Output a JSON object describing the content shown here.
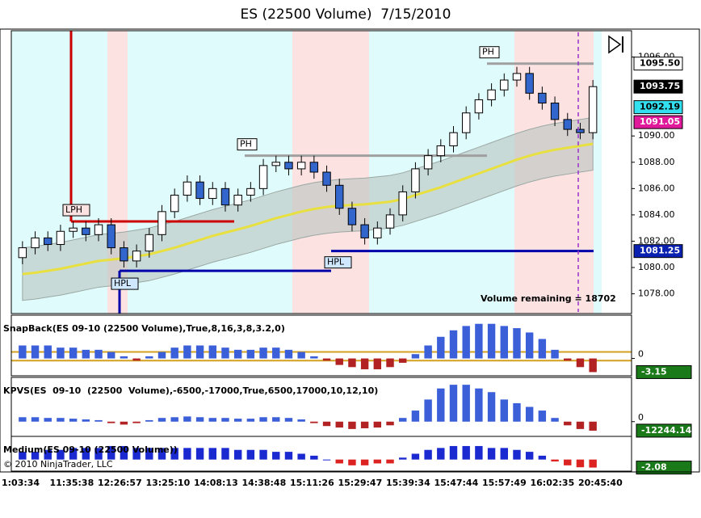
{
  "chart_data": {
    "type": "candlestick",
    "title": "ES (22500 Volume)  7/15/2010",
    "time_labels": [
      "1:03:34",
      "11:35:38",
      "12:26:57",
      "13:25:10",
      "14:08:13",
      "14:38:48",
      "15:11:26",
      "15:29:47",
      "15:39:34",
      "15:47:44",
      "15:57:49",
      "16:02:35",
      "20:45:40"
    ],
    "open": [
      1080.75,
      1081.5,
      1082.25,
      1081.75,
      1082.75,
      1083,
      1082.5,
      1083.25,
      1081.5,
      1080.5,
      1081.25,
      1082.5,
      1084.25,
      1085.5,
      1086.5,
      1085.25,
      1086,
      1084.75,
      1085.5,
      1086,
      1087.75,
      1088,
      1087.5,
      1088,
      1087.25,
      1086.25,
      1084.5,
      1083.25,
      1082.25,
      1083,
      1084,
      1085.75,
      1087.5,
      1088.5,
      1089.25,
      1090.25,
      1091.75,
      1092.75,
      1093.5,
      1094.25,
      1094.75,
      1093.25,
      1092.5,
      1091.25,
      1090.5,
      1090.25
    ],
    "high": [
      1082,
      1082.75,
      1082.75,
      1083.25,
      1083.5,
      1083.5,
      1083.75,
      1083.75,
      1082,
      1081.75,
      1083,
      1084.75,
      1086,
      1087,
      1087,
      1086.5,
      1086.5,
      1086,
      1086.5,
      1088.25,
      1088.5,
      1088.5,
      1088.5,
      1088.5,
      1087.75,
      1086.75,
      1085,
      1083.75,
      1083.5,
      1084.5,
      1086.25,
      1088,
      1089,
      1089.75,
      1090.75,
      1092.25,
      1093.25,
      1094,
      1094.75,
      1095.25,
      1095.25,
      1093.75,
      1093,
      1091.75,
      1091,
      1094.25
    ],
    "low": [
      1080.25,
      1081,
      1081.25,
      1081.25,
      1082.25,
      1082,
      1082,
      1081,
      1080,
      1080,
      1080.75,
      1082,
      1083.75,
      1085,
      1084.75,
      1084.75,
      1084.25,
      1084.25,
      1085,
      1085.5,
      1087.25,
      1087,
      1087,
      1086.75,
      1085.75,
      1084,
      1082.75,
      1081.75,
      1081.75,
      1082.5,
      1083.5,
      1085.25,
      1087,
      1088,
      1088.75,
      1089.75,
      1091.25,
      1092.25,
      1093,
      1093.75,
      1092.75,
      1092,
      1090.75,
      1090,
      1089.75,
      1089.75
    ],
    "close": [
      1081.5,
      1082.25,
      1081.75,
      1082.75,
      1083,
      1082.5,
      1083.25,
      1081.5,
      1080.5,
      1081.25,
      1082.5,
      1084.25,
      1085.5,
      1086.5,
      1085.25,
      1086,
      1084.75,
      1085.5,
      1086,
      1087.75,
      1088,
      1087.5,
      1088,
      1087.25,
      1086.25,
      1084.5,
      1083.25,
      1082.25,
      1083,
      1084,
      1085.75,
      1087.5,
      1088.5,
      1089.25,
      1090.25,
      1091.75,
      1092.75,
      1093.5,
      1094.25,
      1094.75,
      1093.25,
      1092.5,
      1091.25,
      1090.5,
      1090.25,
      1093.75
    ],
    "up_color": "#ffffff",
    "down_color": "#3366cc",
    "moving_average": {
      "color": "#e8e040",
      "values": [
        1079.5,
        1079.6,
        1079.75,
        1079.9,
        1080.1,
        1080.3,
        1080.5,
        1080.6,
        1080.7,
        1080.85,
        1081,
        1081.25,
        1081.5,
        1081.8,
        1082.1,
        1082.4,
        1082.65,
        1082.9,
        1083.15,
        1083.45,
        1083.75,
        1084,
        1084.25,
        1084.45,
        1084.6,
        1084.7,
        1084.75,
        1084.8,
        1084.9,
        1085,
        1085.2,
        1085.5,
        1085.8,
        1086.1,
        1086.45,
        1086.8,
        1087.15,
        1087.5,
        1087.85,
        1088.2,
        1088.5,
        1088.75,
        1088.95,
        1089.1,
        1089.25,
        1089.4
      ]
    },
    "band": {
      "color": "#b8c4c0",
      "upper": [
        1081.5,
        1081.6,
        1081.75,
        1081.9,
        1082.1,
        1082.3,
        1082.5,
        1082.6,
        1082.7,
        1082.85,
        1083,
        1083.25,
        1083.5,
        1083.8,
        1084.1,
        1084.4,
        1084.65,
        1084.9,
        1085.15,
        1085.45,
        1085.75,
        1086,
        1086.25,
        1086.45,
        1086.6,
        1086.7,
        1086.75,
        1086.8,
        1086.9,
        1087,
        1087.2,
        1087.5,
        1087.8,
        1088.1,
        1088.45,
        1088.8,
        1089.15,
        1089.5,
        1089.85,
        1090.2,
        1090.5,
        1090.75,
        1090.95,
        1091.1,
        1091.25,
        1091.4
      ],
      "lower": [
        1077.5,
        1077.6,
        1077.75,
        1077.9,
        1078.1,
        1078.3,
        1078.5,
        1078.6,
        1078.7,
        1078.85,
        1079,
        1079.25,
        1079.5,
        1079.8,
        1080.1,
        1080.4,
        1080.65,
        1080.9,
        1081.15,
        1081.45,
        1081.75,
        1082,
        1082.25,
        1082.45,
        1082.6,
        1082.7,
        1082.75,
        1082.8,
        1082.9,
        1083,
        1083.2,
        1083.5,
        1083.8,
        1084.1,
        1084.45,
        1084.8,
        1085.15,
        1085.5,
        1085.85,
        1086.2,
        1086.5,
        1086.75,
        1086.95,
        1087.1,
        1087.25,
        1087.4
      ]
    },
    "ylim": [
      1076.5,
      1098
    ],
    "yticks": [
      {
        "value": 1078,
        "label": "1078.00"
      },
      {
        "value": 1080,
        "label": "1080.00"
      },
      {
        "value": 1082,
        "label": "1082.00"
      },
      {
        "value": 1084,
        "label": "1084.00"
      },
      {
        "value": 1086,
        "label": "1086.00"
      },
      {
        "value": 1088,
        "label": "1088.00"
      },
      {
        "value": 1090,
        "label": "1090.00"
      },
      {
        "value": 1096,
        "label": "1096.00"
      }
    ],
    "levels": [
      {
        "label": "LPH",
        "value": 1083.5,
        "color": "#cc0000"
      },
      {
        "label": "HPL",
        "value": 1079.75,
        "color": "#0000aa"
      },
      {
        "label": "PH",
        "value": 1088.5,
        "color": "#a0a0a0"
      },
      {
        "label": "HPL",
        "value": 1081.25,
        "color": "#0000aa"
      },
      {
        "label": "PH",
        "value": 1095.5,
        "color": "#a0a0a0"
      }
    ],
    "price_markers": [
      {
        "value": 1095.5,
        "label": "1095.50",
        "bg": "#ffffff",
        "fg": "#000000"
      },
      {
        "value": 1093.75,
        "label": "1093.75",
        "bg": "#000000",
        "fg": "#ffffff"
      },
      {
        "value": 1092.19,
        "label": "1092.19",
        "bg": "#33e0f0",
        "fg": "#000000"
      },
      {
        "value": 1091.05,
        "label": "1091.05",
        "bg": "#e0189a",
        "fg": "#ffffff"
      },
      {
        "value": 1081.25,
        "label": "1081.25",
        "bg": "#0a20b0",
        "fg": "#ffffff"
      }
    ],
    "annotation": "Volume remaining = 18702",
    "copyright": "© 2010 NinjaTrader, LLC",
    "panels": [
      {
        "title": "SnapBack(ES 09-10 (22500 Volume),True,8,16,3,8,3.2,0)",
        "ylim": [
          -4,
          10
        ],
        "yticks": [
          0
        ],
        "levels": [
          1.5,
          -0.5
        ],
        "level_color": "#d4a020",
        "pos_color": "#3b5fd9",
        "neg_color": "#b22222",
        "marker_color": "#1a7a1a",
        "values": [
          3,
          3,
          3,
          2.5,
          2.5,
          2,
          2,
          1.5,
          0.5,
          -0.5,
          0.5,
          1.5,
          2.5,
          3,
          3,
          3,
          2.5,
          2,
          2,
          2.5,
          2.5,
          2,
          1.5,
          0.5,
          -0.5,
          -1.5,
          -2,
          -2.5,
          -2.5,
          -2,
          -1,
          1,
          3,
          5,
          6.5,
          7.5,
          8,
          8,
          7.5,
          7,
          6,
          4.5,
          2,
          -0.5,
          -2,
          -3.15
        ]
      },
      {
        "title": "KPVS(ES  09-10  (22500  Volume),-6500,-17000,True,6500,17000,10,12,10)",
        "ylim": [
          -20000,
          60000
        ],
        "yticks": [
          0
        ],
        "levels": [],
        "level_color": "#d4a020",
        "pos_color": "#3b5fd9",
        "neg_color": "#b22222",
        "marker_color": "#1a7a1a",
        "values": [
          6000,
          6000,
          5000,
          5000,
          4000,
          3000,
          2000,
          -2000,
          -4000,
          -2000,
          2000,
          5000,
          6000,
          7000,
          6000,
          5000,
          5000,
          4000,
          4000,
          6000,
          6000,
          5000,
          3000,
          -2000,
          -6000,
          -8000,
          -10000,
          -9000,
          -8000,
          -5000,
          5000,
          15000,
          30000,
          45000,
          50000,
          50000,
          45000,
          40000,
          30000,
          25000,
          20000,
          15000,
          5000,
          -5000,
          -10000,
          -12244.14
        ]
      },
      {
        "title": "Medium(ES 09-10 (22500 Volume))",
        "ylim": [
          -3,
          6
        ],
        "yticks": [],
        "levels": [],
        "level_color": "#d4a020",
        "pos_color": "#1a2ad0",
        "neg_color": "#dd2222",
        "marker_color": "#1a7a1a",
        "values": [
          2,
          2,
          2.5,
          2.5,
          3,
          3,
          3,
          3.5,
          3.5,
          3,
          3,
          3,
          3,
          3,
          3,
          3,
          3,
          2.5,
          2.5,
          2.5,
          2,
          2,
          1.5,
          1,
          0,
          -1,
          -1.5,
          -1.5,
          -1,
          -1,
          0.5,
          1.5,
          2.5,
          3,
          3.5,
          3.5,
          3.5,
          3,
          3,
          2.5,
          2,
          1,
          -0.5,
          -1.5,
          -2,
          -2.08
        ]
      }
    ]
  }
}
